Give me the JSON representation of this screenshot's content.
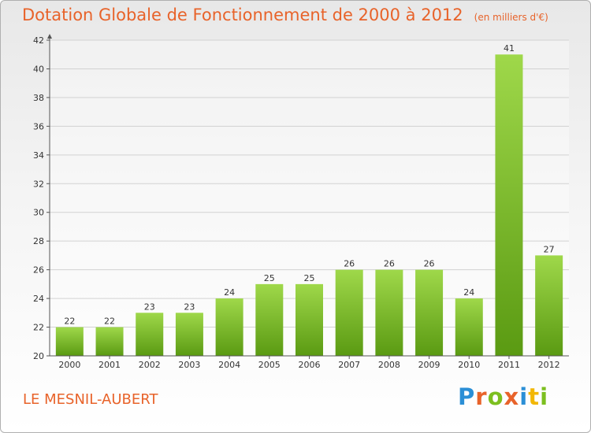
{
  "title": "Dotation Globale de Fonctionnement de 2000 à 2012",
  "unit_label": "(en milliers d'€)",
  "commune": "LE MESNIL-AUBERT",
  "logo_text": "Proxiti",
  "colors": {
    "accent": "#e8632a",
    "bar": "#7cbf1f",
    "bar_dark": "#5a9a12"
  },
  "chart_data": {
    "type": "bar",
    "categories": [
      "2000",
      "2001",
      "2002",
      "2003",
      "2004",
      "2005",
      "2006",
      "2007",
      "2008",
      "2009",
      "2010",
      "2011",
      "2012"
    ],
    "values": [
      22,
      22,
      23,
      23,
      24,
      25,
      25,
      26,
      26,
      26,
      24,
      41,
      27
    ],
    "title": "Dotation Globale de Fonctionnement de 2000 à 2012",
    "xlabel": "",
    "ylabel": "",
    "ylim": [
      20,
      42
    ],
    "yticks": [
      20,
      22,
      24,
      26,
      28,
      30,
      32,
      34,
      36,
      38,
      40,
      42
    ],
    "grid": true
  }
}
